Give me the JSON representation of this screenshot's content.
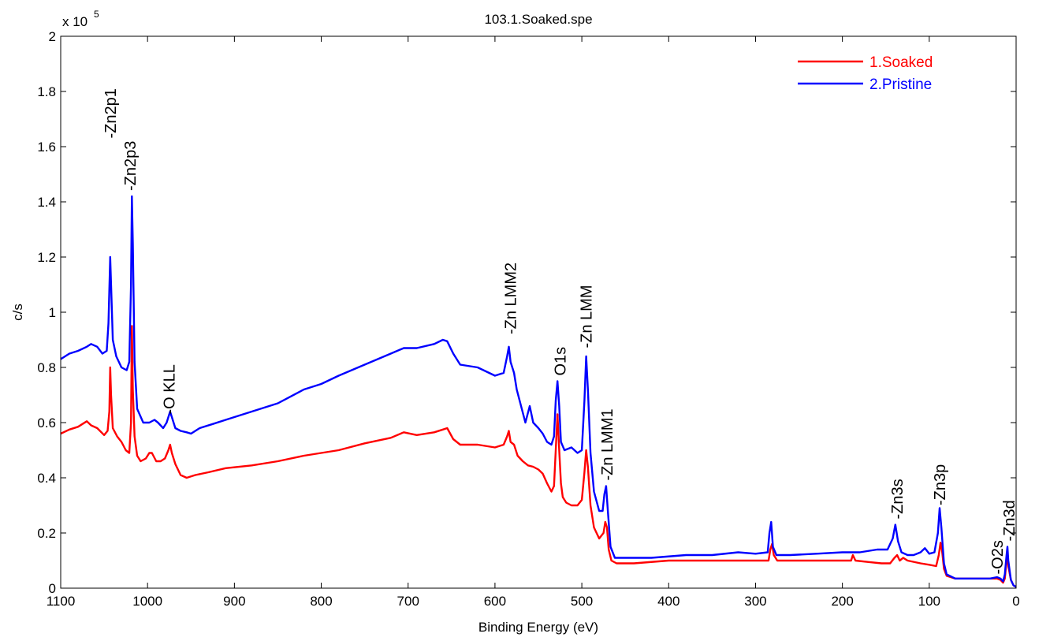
{
  "chart_data": {
    "type": "line",
    "title": "103.1.Soaked.spe",
    "xlabel": "Binding Energy (eV)",
    "ylabel": "c/s",
    "xlim": [
      1100,
      0
    ],
    "x_reversed": true,
    "ylim": [
      0,
      2
    ],
    "y_multiplier_label": "x 10",
    "y_multiplier_exponent": "5",
    "xticks": [
      1100,
      1000,
      900,
      800,
      700,
      600,
      500,
      400,
      300,
      200,
      100,
      0
    ],
    "xtick_labels": [
      "1100",
      "1000",
      "900",
      "800",
      "700",
      "600",
      "500",
      "400",
      "300",
      "200",
      "100",
      "0"
    ],
    "yticks": [
      0,
      0.2,
      0.4,
      0.6,
      0.8,
      1,
      1.2,
      1.4,
      1.6,
      1.8,
      2
    ],
    "ytick_labels": [
      "0",
      "0.2",
      "0.4",
      "0.6",
      "0.8",
      "1",
      "1.2",
      "1.4",
      "1.6",
      "1.8",
      "2"
    ],
    "grid": false,
    "legend_position": "top-right",
    "series": [
      {
        "name": "1.Soaked",
        "color": "#ff0000",
        "points": [
          [
            1100,
            0.56
          ],
          [
            1090,
            0.575
          ],
          [
            1080,
            0.585
          ],
          [
            1070,
            0.605
          ],
          [
            1065,
            0.59
          ],
          [
            1058,
            0.58
          ],
          [
            1050,
            0.555
          ],
          [
            1046,
            0.57
          ],
          [
            1044,
            0.64
          ],
          [
            1043,
            0.8
          ],
          [
            1042,
            0.7
          ],
          [
            1040,
            0.58
          ],
          [
            1035,
            0.55
          ],
          [
            1030,
            0.53
          ],
          [
            1025,
            0.5
          ],
          [
            1021,
            0.49
          ],
          [
            1019,
            0.6
          ],
          [
            1018,
            0.95
          ],
          [
            1017,
            0.72
          ],
          [
            1015,
            0.55
          ],
          [
            1012,
            0.48
          ],
          [
            1008,
            0.46
          ],
          [
            1002,
            0.47
          ],
          [
            998,
            0.49
          ],
          [
            995,
            0.49
          ],
          [
            990,
            0.46
          ],
          [
            985,
            0.46
          ],
          [
            980,
            0.47
          ],
          [
            976,
            0.5
          ],
          [
            974,
            0.52
          ],
          [
            972,
            0.49
          ],
          [
            968,
            0.45
          ],
          [
            962,
            0.41
          ],
          [
            955,
            0.4
          ],
          [
            945,
            0.41
          ],
          [
            930,
            0.42
          ],
          [
            910,
            0.435
          ],
          [
            880,
            0.445
          ],
          [
            850,
            0.46
          ],
          [
            820,
            0.48
          ],
          [
            800,
            0.49
          ],
          [
            780,
            0.5
          ],
          [
            750,
            0.525
          ],
          [
            720,
            0.545
          ],
          [
            705,
            0.565
          ],
          [
            690,
            0.555
          ],
          [
            670,
            0.565
          ],
          [
            660,
            0.575
          ],
          [
            655,
            0.58
          ],
          [
            648,
            0.54
          ],
          [
            640,
            0.52
          ],
          [
            620,
            0.52
          ],
          [
            600,
            0.51
          ],
          [
            590,
            0.52
          ],
          [
            586,
            0.55
          ],
          [
            584,
            0.57
          ],
          [
            582,
            0.53
          ],
          [
            578,
            0.52
          ],
          [
            574,
            0.48
          ],
          [
            568,
            0.46
          ],
          [
            562,
            0.445
          ],
          [
            556,
            0.44
          ],
          [
            550,
            0.43
          ],
          [
            545,
            0.415
          ],
          [
            540,
            0.38
          ],
          [
            535,
            0.35
          ],
          [
            532,
            0.37
          ],
          [
            530,
            0.5
          ],
          [
            528,
            0.63
          ],
          [
            526,
            0.5
          ],
          [
            524,
            0.38
          ],
          [
            522,
            0.33
          ],
          [
            518,
            0.31
          ],
          [
            512,
            0.3
          ],
          [
            505,
            0.3
          ],
          [
            500,
            0.32
          ],
          [
            497,
            0.42
          ],
          [
            495,
            0.5
          ],
          [
            493,
            0.44
          ],
          [
            490,
            0.3
          ],
          [
            486,
            0.22
          ],
          [
            480,
            0.18
          ],
          [
            475,
            0.2
          ],
          [
            473,
            0.24
          ],
          [
            471,
            0.22
          ],
          [
            469,
            0.14
          ],
          [
            466,
            0.1
          ],
          [
            460,
            0.09
          ],
          [
            440,
            0.09
          ],
          [
            400,
            0.1
          ],
          [
            360,
            0.1
          ],
          [
            330,
            0.1
          ],
          [
            300,
            0.1
          ],
          [
            285,
            0.1
          ],
          [
            283,
            0.14
          ],
          [
            281,
            0.16
          ],
          [
            279,
            0.12
          ],
          [
            275,
            0.1
          ],
          [
            260,
            0.1
          ],
          [
            230,
            0.1
          ],
          [
            200,
            0.1
          ],
          [
            190,
            0.1
          ],
          [
            188,
            0.12
          ],
          [
            185,
            0.1
          ],
          [
            170,
            0.095
          ],
          [
            155,
            0.09
          ],
          [
            145,
            0.09
          ],
          [
            140,
            0.11
          ],
          [
            137,
            0.12
          ],
          [
            134,
            0.1
          ],
          [
            130,
            0.11
          ],
          [
            125,
            0.1
          ],
          [
            110,
            0.09
          ],
          [
            100,
            0.085
          ],
          [
            92,
            0.08
          ],
          [
            89,
            0.12
          ],
          [
            87,
            0.165
          ],
          [
            85,
            0.13
          ],
          [
            83,
            0.07
          ],
          [
            80,
            0.045
          ],
          [
            70,
            0.035
          ],
          [
            50,
            0.035
          ],
          [
            30,
            0.035
          ],
          [
            22,
            0.035
          ],
          [
            18,
            0.03
          ],
          [
            15,
            0.02
          ],
          [
            13,
            0.035
          ],
          [
            11,
            0.1
          ],
          [
            10,
            0.12
          ],
          [
            9,
            0.08
          ],
          [
            6,
            0.03
          ],
          [
            3,
            0.01
          ],
          [
            0,
            0.005
          ]
        ]
      },
      {
        "name": "2.Pristine",
        "color": "#0000ff",
        "points": [
          [
            1100,
            0.83
          ],
          [
            1090,
            0.85
          ],
          [
            1080,
            0.86
          ],
          [
            1070,
            0.875
          ],
          [
            1065,
            0.885
          ],
          [
            1058,
            0.875
          ],
          [
            1052,
            0.85
          ],
          [
            1047,
            0.86
          ],
          [
            1045,
            0.96
          ],
          [
            1043,
            1.2
          ],
          [
            1042,
            1.1
          ],
          [
            1040,
            0.9
          ],
          [
            1036,
            0.84
          ],
          [
            1030,
            0.8
          ],
          [
            1024,
            0.79
          ],
          [
            1021,
            0.82
          ],
          [
            1019,
            1.1
          ],
          [
            1018,
            1.42
          ],
          [
            1017,
            1.25
          ],
          [
            1015,
            0.82
          ],
          [
            1012,
            0.65
          ],
          [
            1005,
            0.6
          ],
          [
            998,
            0.6
          ],
          [
            992,
            0.61
          ],
          [
            988,
            0.6
          ],
          [
            982,
            0.58
          ],
          [
            978,
            0.6
          ],
          [
            974,
            0.64
          ],
          [
            972,
            0.62
          ],
          [
            968,
            0.58
          ],
          [
            962,
            0.57
          ],
          [
            955,
            0.565
          ],
          [
            950,
            0.56
          ],
          [
            940,
            0.58
          ],
          [
            925,
            0.595
          ],
          [
            910,
            0.61
          ],
          [
            880,
            0.64
          ],
          [
            850,
            0.67
          ],
          [
            820,
            0.72
          ],
          [
            800,
            0.74
          ],
          [
            780,
            0.77
          ],
          [
            750,
            0.81
          ],
          [
            720,
            0.85
          ],
          [
            705,
            0.87
          ],
          [
            690,
            0.87
          ],
          [
            670,
            0.885
          ],
          [
            660,
            0.9
          ],
          [
            655,
            0.895
          ],
          [
            648,
            0.85
          ],
          [
            640,
            0.81
          ],
          [
            620,
            0.8
          ],
          [
            600,
            0.77
          ],
          [
            590,
            0.78
          ],
          [
            586,
            0.84
          ],
          [
            584,
            0.875
          ],
          [
            582,
            0.82
          ],
          [
            578,
            0.78
          ],
          [
            575,
            0.72
          ],
          [
            570,
            0.66
          ],
          [
            565,
            0.6
          ],
          [
            560,
            0.66
          ],
          [
            556,
            0.6
          ],
          [
            550,
            0.58
          ],
          [
            545,
            0.56
          ],
          [
            540,
            0.53
          ],
          [
            535,
            0.52
          ],
          [
            532,
            0.55
          ],
          [
            530,
            0.68
          ],
          [
            528,
            0.75
          ],
          [
            526,
            0.66
          ],
          [
            524,
            0.53
          ],
          [
            520,
            0.5
          ],
          [
            512,
            0.51
          ],
          [
            505,
            0.49
          ],
          [
            500,
            0.5
          ],
          [
            497,
            0.68
          ],
          [
            495,
            0.84
          ],
          [
            493,
            0.72
          ],
          [
            490,
            0.49
          ],
          [
            486,
            0.35
          ],
          [
            480,
            0.28
          ],
          [
            476,
            0.28
          ],
          [
            474,
            0.34
          ],
          [
            472,
            0.37
          ],
          [
            470,
            0.28
          ],
          [
            467,
            0.15
          ],
          [
            462,
            0.11
          ],
          [
            450,
            0.11
          ],
          [
            420,
            0.11
          ],
          [
            380,
            0.12
          ],
          [
            350,
            0.12
          ],
          [
            320,
            0.13
          ],
          [
            300,
            0.125
          ],
          [
            286,
            0.13
          ],
          [
            284,
            0.2
          ],
          [
            282,
            0.24
          ],
          [
            280,
            0.15
          ],
          [
            276,
            0.12
          ],
          [
            260,
            0.12
          ],
          [
            230,
            0.125
          ],
          [
            200,
            0.13
          ],
          [
            180,
            0.13
          ],
          [
            160,
            0.14
          ],
          [
            148,
            0.14
          ],
          [
            142,
            0.18
          ],
          [
            139,
            0.23
          ],
          [
            136,
            0.17
          ],
          [
            132,
            0.13
          ],
          [
            125,
            0.12
          ],
          [
            118,
            0.12
          ],
          [
            110,
            0.13
          ],
          [
            105,
            0.145
          ],
          [
            100,
            0.125
          ],
          [
            94,
            0.13
          ],
          [
            90,
            0.2
          ],
          [
            88,
            0.29
          ],
          [
            86,
            0.22
          ],
          [
            83,
            0.09
          ],
          [
            80,
            0.05
          ],
          [
            70,
            0.035
          ],
          [
            50,
            0.035
          ],
          [
            30,
            0.035
          ],
          [
            22,
            0.04
          ],
          [
            18,
            0.035
          ],
          [
            15,
            0.025
          ],
          [
            13,
            0.05
          ],
          [
            11,
            0.12
          ],
          [
            10,
            0.15
          ],
          [
            9,
            0.1
          ],
          [
            6,
            0.03
          ],
          [
            3,
            0.01
          ],
          [
            0,
            0.005
          ]
        ]
      }
    ],
    "annotations": [
      {
        "text": "-Zn2p1",
        "x": 1043,
        "y": 1.63
      },
      {
        "text": "-Zn2p3",
        "x": 1020,
        "y": 1.44
      },
      {
        "text": "-O KLL",
        "x": 975,
        "y": 0.63
      },
      {
        "text": "-Zn LMM2",
        "x": 582,
        "y": 0.92
      },
      {
        "text": "O1s",
        "x": 525,
        "y": 0.77
      },
      {
        "text": "-Zn LMM",
        "x": 495,
        "y": 0.87
      },
      {
        "text": "-Zn LMM1",
        "x": 471,
        "y": 0.39
      },
      {
        "text": "-Zn3s",
        "x": 137,
        "y": 0.25
      },
      {
        "text": "-Zn3p",
        "x": 88,
        "y": 0.3
      },
      {
        "text": "-O2s",
        "x": 22,
        "y": 0.05
      },
      {
        "text": "-Zn3d",
        "x": 8,
        "y": 0.17
      }
    ]
  }
}
